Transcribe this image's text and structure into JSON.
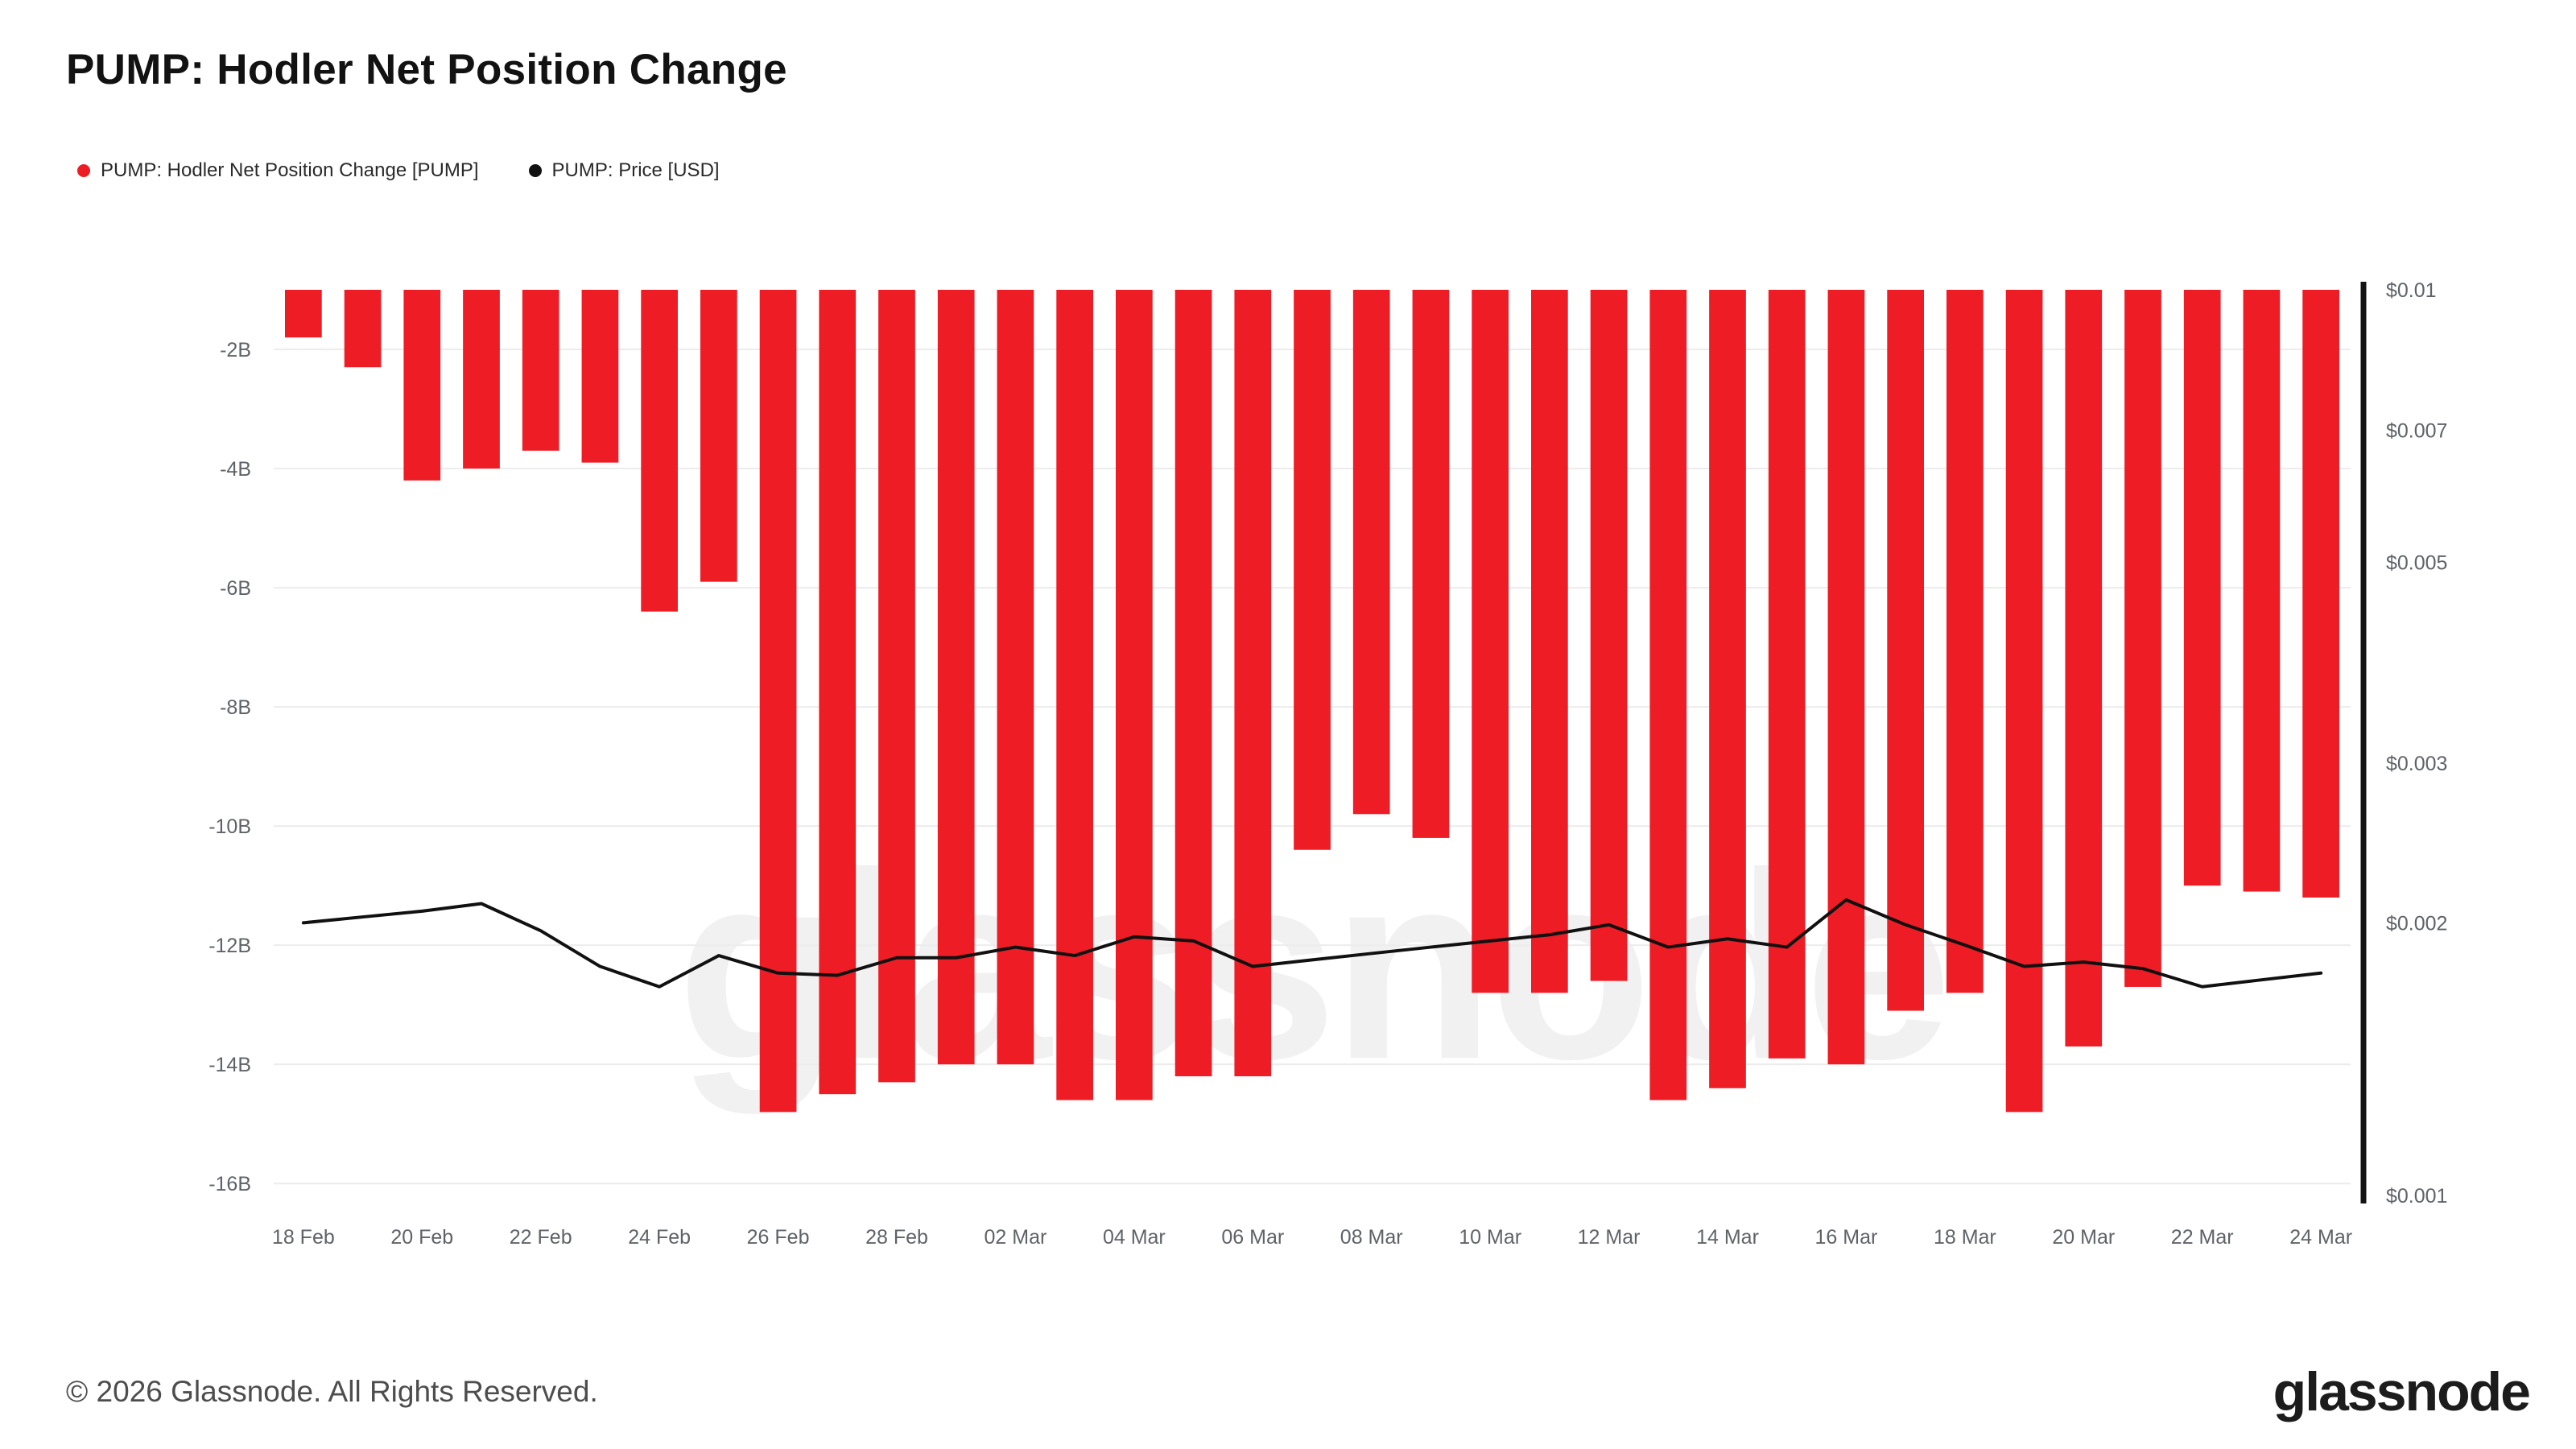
{
  "title": "PUMP: Hodler Net Position Change",
  "watermark": "glassnode",
  "legend": [
    {
      "label": "PUMP: Hodler Net Position Change [PUMP]",
      "color": "#ee1c25"
    },
    {
      "label": "PUMP: Price [USD]",
      "color": "#111111"
    }
  ],
  "footer": {
    "copyright": "© 2026 Glassnode. All Rights Reserved.",
    "logo": "glassnode"
  },
  "chart_data": {
    "type": "bar",
    "x": [
      "18 Feb",
      "19 Feb",
      "20 Feb",
      "21 Feb",
      "22 Feb",
      "23 Feb",
      "24 Feb",
      "25 Feb",
      "26 Feb",
      "27 Feb",
      "28 Feb",
      "01 Mar",
      "02 Mar",
      "03 Mar",
      "04 Mar",
      "05 Mar",
      "06 Mar",
      "07 Mar",
      "08 Mar",
      "09 Mar",
      "10 Mar",
      "11 Mar",
      "12 Mar",
      "13 Mar",
      "14 Mar",
      "15 Mar",
      "16 Mar",
      "17 Mar",
      "18 Mar",
      "19 Mar",
      "20 Mar",
      "21 Mar",
      "22 Mar",
      "23 Mar",
      "24 Mar"
    ],
    "x_tick_step": 2,
    "series": [
      {
        "name": "PUMP: Hodler Net Position Change [PUMP]",
        "type": "bar",
        "axis": "left",
        "color": "#ee1c25",
        "unit": "B",
        "values": [
          -1.8,
          -2.3,
          -4.2,
          -4.0,
          -3.7,
          -3.9,
          -6.4,
          -5.9,
          -14.8,
          -14.5,
          -14.3,
          -14.0,
          -14.0,
          -14.6,
          -14.6,
          -14.2,
          -14.2,
          -10.4,
          -9.8,
          -10.2,
          -12.8,
          -12.8,
          -12.6,
          -14.6,
          -14.4,
          -13.9,
          -14.0,
          -13.1,
          -12.8,
          -14.8,
          -13.7,
          -12.7,
          -11.0,
          -11.1,
          -11.2
        ]
      },
      {
        "name": "PUMP: Price [USD]",
        "type": "line",
        "axis": "right",
        "color": "#111111",
        "unit": "USD",
        "values": [
          0.002,
          0.00203,
          0.00206,
          0.0021,
          0.00196,
          0.00179,
          0.0017,
          0.00184,
          0.00176,
          0.00175,
          0.00183,
          0.00183,
          0.00188,
          0.00184,
          0.00193,
          0.00191,
          0.00179,
          0.00182,
          0.00185,
          0.00188,
          0.00191,
          0.00194,
          0.00199,
          0.00188,
          0.00192,
          0.00188,
          0.00212,
          0.00199,
          0.00189,
          0.00179,
          0.00181,
          0.00178,
          0.0017,
          0.00173,
          0.00176
        ]
      }
    ],
    "left_axis": {
      "scale": "linear",
      "range": [
        -1.0,
        -16.2
      ],
      "ticks": [
        "-2B",
        "-4B",
        "-6B",
        "-8B",
        "-10B",
        "-12B",
        "-14B",
        "-16B"
      ],
      "tick_values": [
        -2,
        -4,
        -6,
        -8,
        -10,
        -12,
        -14,
        -16
      ]
    },
    "right_axis": {
      "scale": "log",
      "range": [
        0.001,
        0.01
      ],
      "ticks": [
        "$0.01",
        "$0.007",
        "$0.005",
        "$0.003",
        "$0.002",
        "$0.001"
      ],
      "tick_values": [
        0.01,
        0.007,
        0.005,
        0.003,
        0.002,
        0.001
      ]
    },
    "grid": "horizontal",
    "legend_position": "top-left"
  }
}
